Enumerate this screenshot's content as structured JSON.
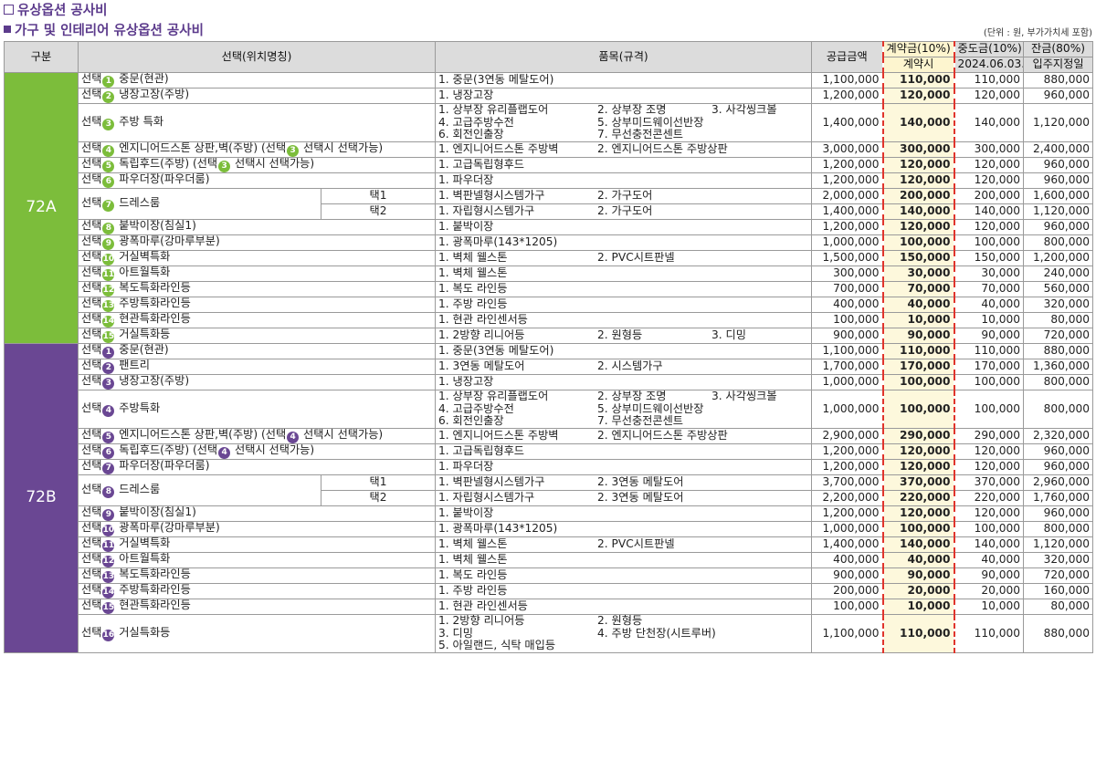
{
  "header": {
    "title1": "유상옵션 공사비",
    "title2": "가구 및 인테리어 유상옵션 공사비",
    "unit_note": "(단위 : 원, 부가가치세 포함)"
  },
  "columns": {
    "group": "구분",
    "option": "선택(위치명칭)",
    "item": "품목(규격)",
    "supply": "공급금액",
    "contract_top": "계약금(10%)",
    "contract_sub": "계약시",
    "middle_top": "중도금(10%)",
    "middle_sub": "2024.06.03.",
    "balance_top": "잔금(80%)",
    "balance_sub": "입주지정일"
  },
  "groups": [
    {
      "label": "72A",
      "rows": [
        {
          "pre": "선택",
          "n": "1",
          "post": " 중문(현관)",
          "items": [
            "1. 중문(3연동 메탈도어)"
          ],
          "supply": "1,100,000",
          "contract": "110,000",
          "middle": "110,000",
          "balance": "880,000"
        },
        {
          "pre": "선택",
          "n": "2",
          "post": " 냉장고장(주방)",
          "items": [
            "1. 냉장고장"
          ],
          "supply": "1,200,000",
          "contract": "120,000",
          "middle": "120,000",
          "balance": "960,000"
        },
        {
          "pre": "선택",
          "n": "3",
          "post": " 주방 특화",
          "items": [
            "1. 상부장 유리플랩도어",
            "2. 상부장 조명",
            "3. 사각씽크볼",
            "4. 고급주방수전",
            "5. 상부미드웨이선반장",
            "",
            "6. 회전인출장",
            "7. 무선충전콘센트",
            ""
          ],
          "supply": "1,400,000",
          "contract": "140,000",
          "middle": "140,000",
          "balance": "1,120,000"
        },
        {
          "pre": "선택",
          "n": "4",
          "post": " 엔지니어드스톤 상판,벽(주방) (선택",
          "n2": "3",
          "post2": " 선택시 선택가능)",
          "items": [
            "1. 엔지니어드스톤 주방벽",
            "2. 엔지니어드스톤 주방상판"
          ],
          "supply": "3,000,000",
          "contract": "300,000",
          "middle": "300,000",
          "balance": "2,400,000"
        },
        {
          "pre": "선택",
          "n": "5",
          "post": " 독립후드(주방) (선택",
          "n2": "3",
          "post2": " 선택시 선택가능)",
          "items": [
            "1. 고급독립형후드"
          ],
          "supply": "1,200,000",
          "contract": "120,000",
          "middle": "120,000",
          "balance": "960,000"
        },
        {
          "pre": "선택",
          "n": "6",
          "post": " 파우더장(파우더룸)",
          "items": [
            "1. 파우더장"
          ],
          "supply": "1,200,000",
          "contract": "120,000",
          "middle": "120,000",
          "balance": "960,000"
        },
        {
          "pre": "선택",
          "n": "7",
          "post": " 드레스룸",
          "sub": [
            {
              "type": "택1",
              "items": [
                "1. 벽판넬형시스템가구",
                "2. 가구도어"
              ],
              "supply": "2,000,000",
              "contract": "200,000",
              "middle": "200,000",
              "balance": "1,600,000"
            },
            {
              "type": "택2",
              "items": [
                "1. 자립형시스템가구",
                "2. 가구도어"
              ],
              "supply": "1,400,000",
              "contract": "140,000",
              "middle": "140,000",
              "balance": "1,120,000"
            }
          ]
        },
        {
          "pre": "선택",
          "n": "8",
          "post": " 붙박이장(침실1)",
          "items": [
            "1. 붙박이장"
          ],
          "supply": "1,200,000",
          "contract": "120,000",
          "middle": "120,000",
          "balance": "960,000"
        },
        {
          "pre": "선택",
          "n": "9",
          "post": " 광폭마루(강마루부분)",
          "items": [
            "1. 광폭마루(143*1205)"
          ],
          "supply": "1,000,000",
          "contract": "100,000",
          "middle": "100,000",
          "balance": "800,000"
        },
        {
          "pre": "선택",
          "n": "10",
          "post": " 거실벽특화",
          "items": [
            "1. 벽체 웰스톤",
            "2. PVC시트판넬"
          ],
          "supply": "1,500,000",
          "contract": "150,000",
          "middle": "150,000",
          "balance": "1,200,000"
        },
        {
          "pre": "선택",
          "n": "11",
          "post": " 아트월특화",
          "items": [
            "1. 벽체 웰스톤"
          ],
          "supply": "300,000",
          "contract": "30,000",
          "middle": "30,000",
          "balance": "240,000"
        },
        {
          "pre": "선택",
          "n": "12",
          "post": " 복도특화라인등",
          "items": [
            "1. 복도 라인등"
          ],
          "supply": "700,000",
          "contract": "70,000",
          "middle": "70,000",
          "balance": "560,000"
        },
        {
          "pre": "선택",
          "n": "13",
          "post": " 주방특화라인등",
          "items": [
            "1. 주방 라인등"
          ],
          "supply": "400,000",
          "contract": "40,000",
          "middle": "40,000",
          "balance": "320,000"
        },
        {
          "pre": "선택",
          "n": "14",
          "post": " 현관특화라인등",
          "items": [
            "1. 현관 라인센서등"
          ],
          "supply": "100,000",
          "contract": "10,000",
          "middle": "10,000",
          "balance": "80,000"
        },
        {
          "pre": "선택",
          "n": "15",
          "post": " 거실특화등",
          "items": [
            "1. 2방향 리니어등",
            "2. 원형등",
            "3. 디밍"
          ],
          "supply": "900,000",
          "contract": "90,000",
          "middle": "90,000",
          "balance": "720,000"
        }
      ]
    },
    {
      "label": "72B",
      "rows": [
        {
          "pre": "선택",
          "n": "1",
          "post": " 중문(현관)",
          "items": [
            "1. 중문(3연동 메탈도어)"
          ],
          "supply": "1,100,000",
          "contract": "110,000",
          "middle": "110,000",
          "balance": "880,000"
        },
        {
          "pre": "선택",
          "n": "2",
          "post": " 팬트리",
          "items": [
            "1. 3연동 메탈도어",
            "2. 시스템가구"
          ],
          "supply": "1,700,000",
          "contract": "170,000",
          "middle": "170,000",
          "balance": "1,360,000"
        },
        {
          "pre": "선택",
          "n": "3",
          "post": " 냉장고장(주방)",
          "items": [
            "1. 냉장고장"
          ],
          "supply": "1,000,000",
          "contract": "100,000",
          "middle": "100,000",
          "balance": "800,000"
        },
        {
          "pre": "선택",
          "n": "4",
          "post": " 주방특화",
          "items": [
            "1. 상부장 유리플랩도어",
            "2. 상부장 조명",
            "3. 사각씽크볼",
            "4. 고급주방수전",
            "5. 상부미드웨이선반장",
            "",
            "6. 회전인출장",
            "7. 무선충전콘센트",
            ""
          ],
          "supply": "1,000,000",
          "contract": "100,000",
          "middle": "100,000",
          "balance": "800,000"
        },
        {
          "pre": "선택",
          "n": "5",
          "post": " 엔지니어드스톤 상판,벽(주방) (선택",
          "n2": "4",
          "post2": " 선택시 선택가능)",
          "items": [
            "1. 엔지니어드스톤 주방벽",
            "2. 엔지니어드스톤 주방상판"
          ],
          "supply": "2,900,000",
          "contract": "290,000",
          "middle": "290,000",
          "balance": "2,320,000"
        },
        {
          "pre": "선택",
          "n": "6",
          "post": " 독립후드(주방) (선택",
          "n2": "4",
          "post2": " 선택시 선택가능)",
          "items": [
            "1. 고급독립형후드"
          ],
          "supply": "1,200,000",
          "contract": "120,000",
          "middle": "120,000",
          "balance": "960,000"
        },
        {
          "pre": "선택",
          "n": "7",
          "post": " 파우더장(파우더룸)",
          "items": [
            "1. 파우더장"
          ],
          "supply": "1,200,000",
          "contract": "120,000",
          "middle": "120,000",
          "balance": "960,000"
        },
        {
          "pre": "선택",
          "n": "8",
          "post": " 드레스룸",
          "sub": [
            {
              "type": "택1",
              "items": [
                "1. 벽판넬형시스템가구",
                "2. 3연동 메탈도어"
              ],
              "supply": "3,700,000",
              "contract": "370,000",
              "middle": "370,000",
              "balance": "2,960,000"
            },
            {
              "type": "택2",
              "items": [
                "1. 자립형시스템가구",
                "2. 3연동 메탈도어"
              ],
              "supply": "2,200,000",
              "contract": "220,000",
              "middle": "220,000",
              "balance": "1,760,000"
            }
          ]
        },
        {
          "pre": "선택",
          "n": "9",
          "post": " 붙박이장(침실1)",
          "items": [
            "1. 붙박이장"
          ],
          "supply": "1,200,000",
          "contract": "120,000",
          "middle": "120,000",
          "balance": "960,000"
        },
        {
          "pre": "선택",
          "n": "10",
          "post": " 광폭마루(강마루부분)",
          "items": [
            "1. 광폭마루(143*1205)"
          ],
          "supply": "1,000,000",
          "contract": "100,000",
          "middle": "100,000",
          "balance": "800,000"
        },
        {
          "pre": "선택",
          "n": "11",
          "post": " 거실벽특화",
          "items": [
            "1. 벽체 웰스톤",
            "2. PVC시트판넬"
          ],
          "supply": "1,400,000",
          "contract": "140,000",
          "middle": "140,000",
          "balance": "1,120,000"
        },
        {
          "pre": "선택",
          "n": "12",
          "post": " 아트월특화",
          "items": [
            "1. 벽체 웰스톤"
          ],
          "supply": "400,000",
          "contract": "40,000",
          "middle": "40,000",
          "balance": "320,000"
        },
        {
          "pre": "선택",
          "n": "13",
          "post": " 복도특화라인등",
          "items": [
            "1. 복도 라인등"
          ],
          "supply": "900,000",
          "contract": "90,000",
          "middle": "90,000",
          "balance": "720,000"
        },
        {
          "pre": "선택",
          "n": "14",
          "post": " 주방특화라인등",
          "items": [
            "1. 주방 라인등"
          ],
          "supply": "200,000",
          "contract": "20,000",
          "middle": "20,000",
          "balance": "160,000"
        },
        {
          "pre": "선택",
          "n": "15",
          "post": " 현관특화라인등",
          "items": [
            "1. 현관 라인센서등"
          ],
          "supply": "100,000",
          "contract": "10,000",
          "middle": "10,000",
          "balance": "80,000"
        },
        {
          "pre": "선택",
          "n": "16",
          "post": " 거실특화등",
          "items": [
            "1. 2방향 리니어등",
            "2. 원형등",
            "",
            "3. 디밍",
            "4. 주방 단천장(시트루버)",
            "",
            "5. 아일랜드, 식탁 매입등",
            "",
            ""
          ],
          "supply": "1,100,000",
          "contract": "110,000",
          "middle": "110,000",
          "balance": "880,000"
        }
      ]
    }
  ]
}
